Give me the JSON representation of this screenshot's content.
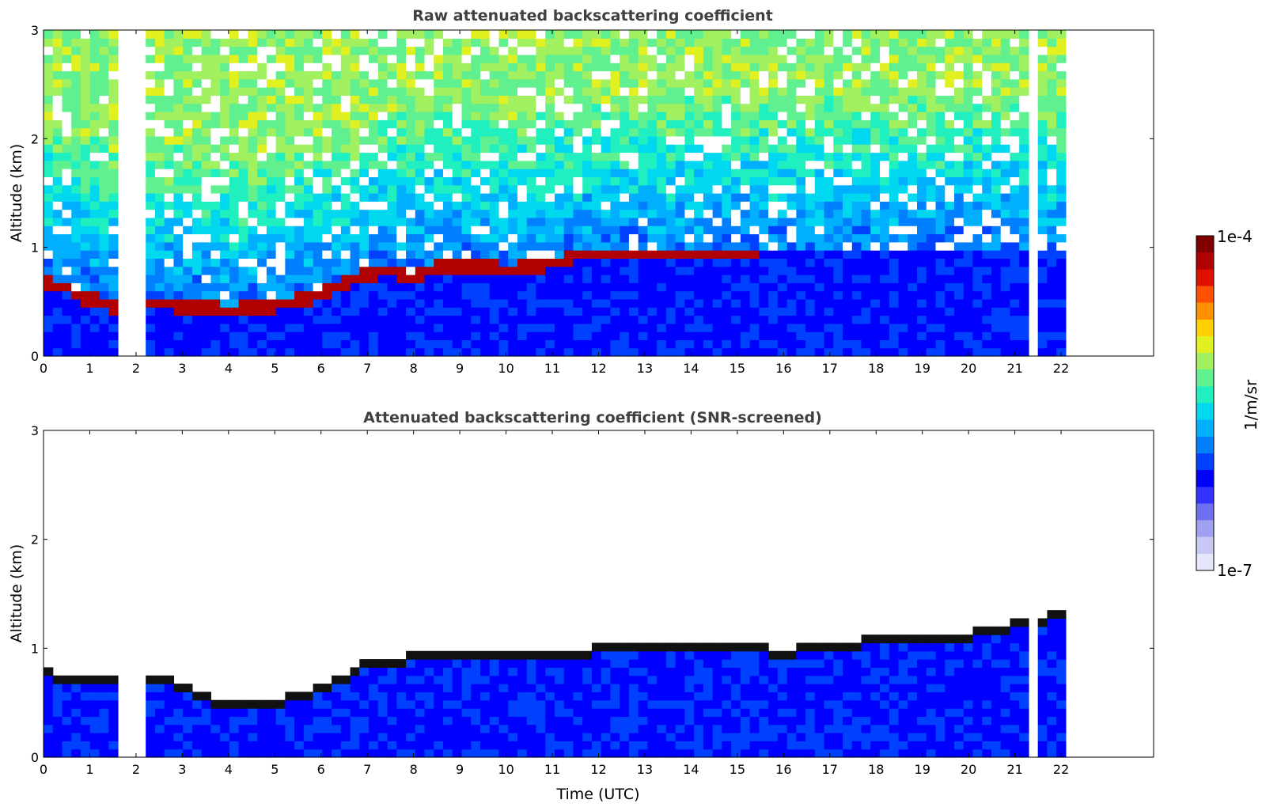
{
  "chart_data": [
    {
      "type": "heatmap",
      "title": "Raw attenuated backscattering coefficient",
      "xlabel": "",
      "ylabel": "Altitude (km)",
      "xlim": [
        0,
        24
      ],
      "ylim": [
        0,
        3
      ],
      "xticks": [
        "0",
        "1",
        "2",
        "3",
        "4",
        "5",
        "6",
        "7",
        "8",
        "9",
        "10",
        "11",
        "12",
        "13",
        "14",
        "15",
        "16",
        "17",
        "18",
        "19",
        "20",
        "21",
        "22"
      ],
      "yticks": [
        "0",
        "1",
        "2",
        "3"
      ],
      "data_extent_hours": [
        0,
        22.1
      ],
      "gaps_hours": [
        1.72,
        1.95,
        2.2,
        21.3
      ],
      "layer_top_km": [
        [
          0,
          0.7
        ],
        [
          0.5,
          0.62
        ],
        [
          1,
          0.52
        ],
        [
          1.5,
          0.46
        ],
        [
          2,
          0.5
        ],
        [
          2.5,
          0.5
        ],
        [
          3,
          0.46
        ],
        [
          3.5,
          0.44
        ],
        [
          4,
          0.42
        ],
        [
          4.5,
          0.44
        ],
        [
          5,
          0.47
        ],
        [
          5.5,
          0.52
        ],
        [
          6,
          0.57
        ],
        [
          6.5,
          0.66
        ],
        [
          7,
          0.75
        ],
        [
          7.5,
          0.8
        ],
        [
          8,
          0.72
        ],
        [
          8.5,
          0.83
        ],
        [
          9,
          0.83
        ],
        [
          9.5,
          0.83
        ],
        [
          10,
          0.8
        ],
        [
          10.5,
          0.82
        ],
        [
          11,
          0.86
        ],
        [
          11.5,
          0.92
        ],
        [
          12,
          0.94
        ],
        [
          12.5,
          0.93
        ],
        [
          12.9,
          0.92
        ],
        [
          13.5,
          0.92
        ],
        [
          14,
          0.92
        ],
        [
          14.5,
          0.92
        ],
        [
          15,
          0.92
        ],
        [
          15.5,
          0.94
        ]
      ],
      "colorbar_label": "1/m/sr",
      "colorbar_min": "1e-7",
      "colorbar_max": "1e-4"
    },
    {
      "type": "heatmap",
      "title": "Attenuated backscattering coefficient (SNR-screened)",
      "xlabel": "Time (UTC)",
      "ylabel": "Altitude (km)",
      "xlim": [
        0,
        24
      ],
      "ylim": [
        0,
        3
      ],
      "xticks": [
        "0",
        "1",
        "2",
        "3",
        "4",
        "5",
        "6",
        "7",
        "8",
        "9",
        "10",
        "11",
        "12",
        "13",
        "14",
        "15",
        "16",
        "17",
        "18",
        "19",
        "20",
        "21",
        "22"
      ],
      "yticks": [
        "0",
        "1",
        "2",
        "3"
      ],
      "data_extent_hours": [
        0,
        22.1
      ],
      "gaps_hours": [
        1.72,
        1.95,
        2.2,
        21.3
      ],
      "signal_top_km": [
        [
          0,
          0.8
        ],
        [
          1,
          0.72
        ],
        [
          2,
          0.75
        ],
        [
          3,
          0.7
        ],
        [
          4,
          0.5
        ],
        [
          5,
          0.55
        ],
        [
          6,
          0.65
        ],
        [
          7,
          0.9
        ],
        [
          8,
          0.95
        ],
        [
          9,
          0.97
        ],
        [
          10,
          0.97
        ],
        [
          11,
          0.95
        ],
        [
          12,
          1.02
        ],
        [
          13,
          1.05
        ],
        [
          14,
          1.03
        ],
        [
          15,
          1.03
        ],
        [
          16,
          1.0
        ],
        [
          17,
          1.05
        ],
        [
          18,
          1.1
        ],
        [
          19,
          1.12
        ],
        [
          20,
          1.15
        ],
        [
          21,
          1.25
        ],
        [
          22,
          1.35
        ]
      ],
      "colorbar_label": "1/m/sr",
      "colorbar_min": "1e-7",
      "colorbar_max": "1e-4"
    }
  ],
  "colorbar": {
    "label": "1/m/sr",
    "max_label": "1e-4",
    "min_label": "1e-7",
    "colors": [
      "#e6e6fa",
      "#c8c8f5",
      "#a0a0f0",
      "#6e6ef0",
      "#3232ff",
      "#0000ff",
      "#0040ff",
      "#0080ff",
      "#00b0ff",
      "#00d8f0",
      "#20f0c0",
      "#60f090",
      "#a0f060",
      "#e0f020",
      "#ffd000",
      "#ff9000",
      "#ff5000",
      "#e01000",
      "#b00000",
      "#800000"
    ]
  }
}
